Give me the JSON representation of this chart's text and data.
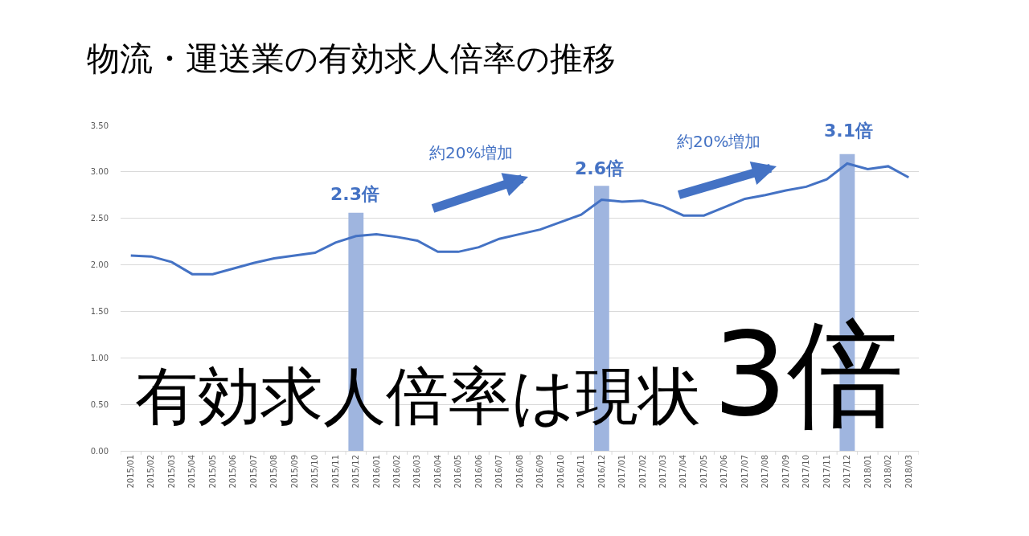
{
  "chart_data": {
    "type": "line",
    "title": "物流・運送業の有効求人倍率の推移",
    "categories": [
      "2015/01",
      "2015/02",
      "2015/03",
      "2015/04",
      "2015/05",
      "2015/06",
      "2015/07",
      "2015/08",
      "2015/09",
      "2015/10",
      "2015/11",
      "2015/12",
      "2016/01",
      "2016/02",
      "2016/03",
      "2016/04",
      "2016/05",
      "2016/06",
      "2016/07",
      "2016/08",
      "2016/09",
      "2016/10",
      "2016/11",
      "2016/12",
      "2017/01",
      "2017/02",
      "2017/03",
      "2017/04",
      "2017/05",
      "2017/06",
      "2017/07",
      "2017/08",
      "2017/09",
      "2017/10",
      "2017/11",
      "2017/12",
      "2018/01",
      "2018/02",
      "2018/03"
    ],
    "series": [
      {
        "type": "bar",
        "color": "#9fb5df",
        "values": [
          null,
          null,
          null,
          null,
          null,
          null,
          null,
          null,
          null,
          null,
          null,
          2.56,
          null,
          null,
          null,
          null,
          null,
          null,
          null,
          null,
          null,
          null,
          null,
          2.85,
          null,
          null,
          null,
          null,
          null,
          null,
          null,
          null,
          null,
          null,
          null,
          3.19,
          null,
          null,
          null
        ]
      },
      {
        "color": "#4472c4",
        "values": [
          2.1,
          2.09,
          2.03,
          1.9,
          1.9,
          1.96,
          2.02,
          2.07,
          2.1,
          2.13,
          2.24,
          2.31,
          2.33,
          2.3,
          2.26,
          2.14,
          2.14,
          2.19,
          2.28,
          2.33,
          2.38,
          2.46,
          2.54,
          2.7,
          2.68,
          2.69,
          2.63,
          2.53,
          2.53,
          2.62,
          2.71,
          2.75,
          2.8,
          2.84,
          2.92,
          3.09,
          3.03,
          3.06,
          2.94
        ]
      }
    ],
    "ylim": [
      0,
      3.5
    ],
    "yticks": [
      {
        "value": 0,
        "label": "0.00"
      },
      {
        "value": 0.5,
        "label": "0.50"
      },
      {
        "value": 1,
        "label": "1.00"
      },
      {
        "value": 1.5,
        "label": "1.50"
      },
      {
        "value": 2,
        "label": "2.00"
      },
      {
        "value": 2.5,
        "label": "2.50"
      },
      {
        "value": 3,
        "label": "3.00"
      },
      {
        "value": 3.5,
        "label": "3.50"
      }
    ],
    "grid": "y",
    "line_style": "solid",
    "annotations": [
      "2.3倍",
      "2.6倍",
      "3.1倍",
      "約20%増加",
      "約20%増加",
      "有効求人倍率は現状",
      "3倍"
    ]
  }
}
